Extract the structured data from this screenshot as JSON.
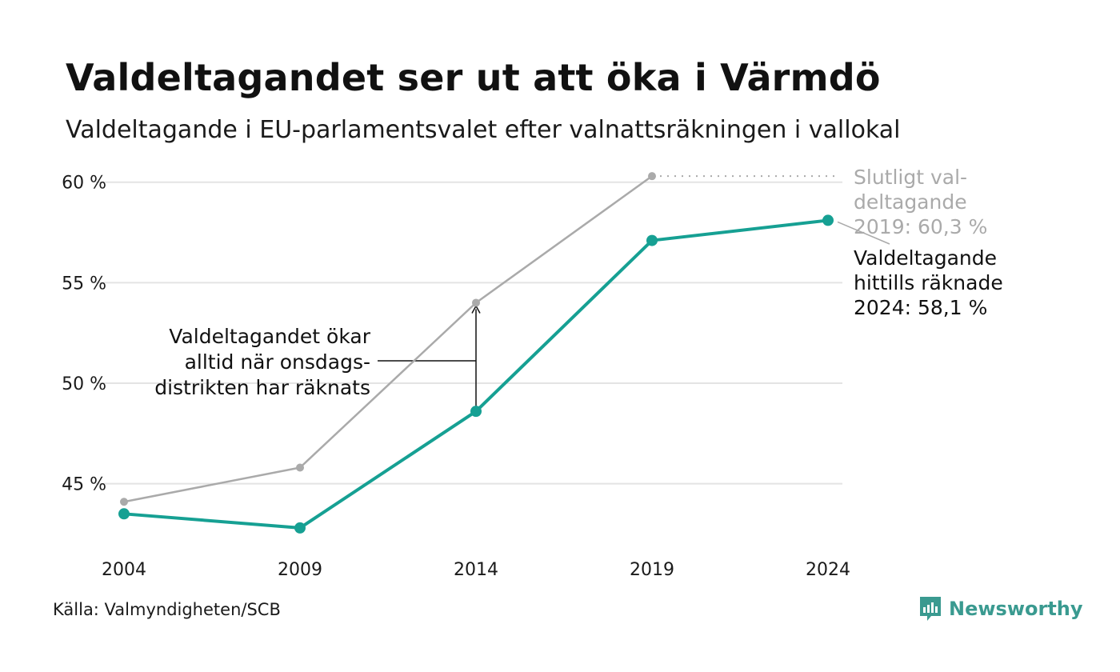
{
  "title": "Valdeltagandet ser ut att öka i Värmdö",
  "subtitle": "Valdeltagande i EU-parlamentsvalet efter valnattsräkningen i vallokal",
  "source": "Källa: Valmyndigheten/SCB",
  "logo": {
    "name": "Newsworthy",
    "icon": "bar-chart-icon",
    "color": "#3a9a90"
  },
  "chart_data": {
    "type": "line",
    "x": [
      2004,
      2009,
      2014,
      2019,
      2024
    ],
    "x_tick_labels": [
      "2004",
      "2009",
      "2014",
      "2019",
      "2024"
    ],
    "ylim": [
      42.0,
      61.5
    ],
    "y_ticks": [
      45,
      50,
      55,
      60
    ],
    "y_tick_labels": [
      "45 %",
      "50 %",
      "55 %",
      "60 %"
    ],
    "grid": "horizontal",
    "series": [
      {
        "key": "final",
        "color": "#aaaaaa",
        "values": [
          44.1,
          45.8,
          54.0,
          60.3,
          null
        ]
      },
      {
        "key": "counted",
        "color": "#16a093",
        "values": [
          43.5,
          42.8,
          48.6,
          57.1,
          58.1
        ]
      }
    ],
    "annotations": {
      "final_label": [
        "Slutligt val-",
        "deltagande",
        "2019: 60,3 %"
      ],
      "counted_label": [
        "Valdeltagande",
        "hittills räknade",
        "2024: 58,1 %"
      ],
      "gap_note": [
        "Valdeltagandet ökar",
        "alltid när onsdags-",
        "distrikten har räknats"
      ]
    }
  }
}
